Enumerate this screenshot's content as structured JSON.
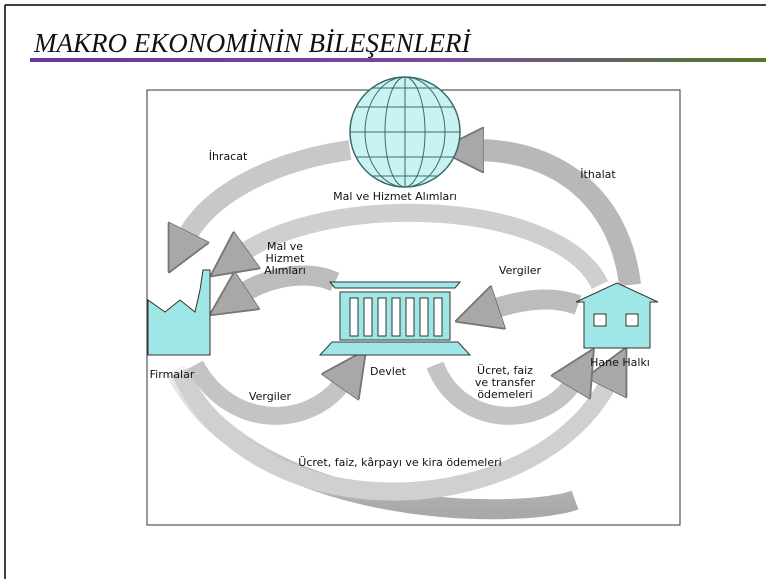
{
  "header": {
    "title": "MAKRO EKONOMİNİN BİLEŞENLERİ"
  },
  "nodes": [
    {
      "label": "Firmalar"
    },
    {
      "label": "Devlet"
    },
    {
      "label": "Hane Halkı"
    }
  ],
  "flows": [
    {
      "lines": [
        "İhracat"
      ]
    },
    {
      "lines": [
        "İthalat"
      ]
    },
    {
      "lines": [
        "Mal ve Hizmet Alımları"
      ]
    },
    {
      "lines": [
        "Mal ve",
        "Hizmet",
        "Alımları"
      ]
    },
    {
      "lines": [
        "Vergiler"
      ]
    },
    {
      "lines": [
        "Vergiler"
      ]
    },
    {
      "lines": [
        "Ücret, faiz",
        "ve transfer",
        "ödemeleri"
      ]
    },
    {
      "lines": [
        "Ücret, faiz, kârpayı ve kira ödemeleri"
      ]
    }
  ]
}
